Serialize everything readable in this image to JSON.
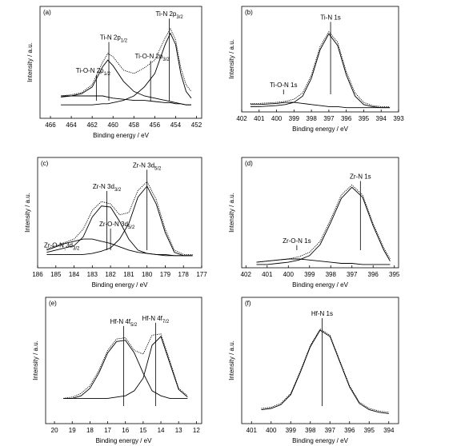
{
  "chart_data": [
    {
      "type": "line",
      "label": "(a)",
      "xlabel": "Binding energy / eV",
      "ylabel": "Intensity / a.u.",
      "xlim": [
        467,
        451.5
      ],
      "xticks": [
        466,
        464,
        462,
        460,
        458,
        456,
        454,
        452
      ],
      "ylim": [
        0,
        100
      ],
      "x": [
        465,
        464,
        463,
        462,
        461,
        460.5,
        460,
        459,
        458,
        457,
        456,
        455,
        454.5,
        454,
        453.5,
        453,
        452.5
      ],
      "series": [
        {
          "color": "#000000",
          "dash": true,
          "values": [
            20,
            21,
            23,
            30,
            50,
            58,
            55,
            43,
            40,
            45,
            52,
            72,
            80,
            70,
            45,
            30,
            24
          ]
        },
        {
          "color": "#000000",
          "values": [
            19,
            20,
            22,
            28,
            46,
            52,
            47,
            33,
            24,
            20,
            18,
            16,
            15,
            14,
            13,
            12,
            12
          ]
        },
        {
          "color": "#000000",
          "values": [
            12,
            12,
            12,
            12,
            13,
            13,
            14,
            16,
            20,
            28,
            40,
            66,
            76,
            66,
            40,
            24,
            18
          ]
        },
        {
          "color": "#000000",
          "values": [
            20,
            20,
            20,
            20,
            20,
            19,
            18,
            17,
            16,
            16,
            15,
            14,
            14,
            13,
            13,
            12,
            12
          ]
        }
      ],
      "annotations": [
        {
          "text": "Ti-O-N 2p",
          "sub": "1/2",
          "x": 461.6
        },
        {
          "text": "Ti-N 2p",
          "sub": "1/2",
          "x": 460.4
        },
        {
          "text": "Ti-O-N 2p",
          "sub": "3/2",
          "x": 456.4
        },
        {
          "text": "Ti-N 2p",
          "sub": "3/2",
          "x": 454.6
        }
      ]
    },
    {
      "type": "line",
      "label": "(b)",
      "xlabel": "Binding energy / eV",
      "ylabel": "Intensity / a.u.",
      "xlim": [
        402,
        393
      ],
      "xticks": [
        402,
        401,
        400,
        399,
        398,
        397,
        396,
        395,
        394,
        393
      ],
      "ylim": [
        0,
        100
      ],
      "x": [
        401.5,
        401,
        400,
        399.5,
        399,
        398.5,
        398,
        397.5,
        397,
        396.5,
        396,
        395.5,
        395,
        394.5,
        394,
        393.5
      ],
      "series": [
        {
          "color": "#000000",
          "dash": true,
          "values": [
            8,
            8,
            9,
            10,
            12,
            18,
            35,
            62,
            76,
            66,
            38,
            18,
            9,
            6,
            5,
            5
          ]
        },
        {
          "color": "#000000",
          "values": [
            5,
            5,
            6,
            7,
            9,
            15,
            32,
            59,
            74,
            63,
            35,
            15,
            7,
            5,
            4,
            4
          ]
        },
        {
          "color": "#000000",
          "values": [
            7,
            7,
            8,
            9,
            9,
            8,
            7,
            6,
            5,
            5,
            4,
            4,
            4,
            4,
            4,
            4
          ]
        }
      ],
      "annotations": [
        {
          "text": "Ti-O-N 1s",
          "x": 399.6
        },
        {
          "text": "Ti-N 1s",
          "x": 396.9
        }
      ]
    },
    {
      "type": "line",
      "label": "(c)",
      "xlabel": "Binding energy / eV",
      "ylabel": "Intensity / a.u.",
      "xlim": [
        186,
        177
      ],
      "xticks": [
        186,
        185,
        184,
        183,
        182,
        181,
        180,
        179,
        178,
        177
      ],
      "ylim": [
        0,
        100
      ],
      "x": [
        185.5,
        185,
        184.5,
        184,
        183.5,
        183,
        182.5,
        182,
        181.5,
        181,
        180.5,
        180,
        179.5,
        179,
        178.5,
        178,
        177.5
      ],
      "series": [
        {
          "color": "#000000",
          "dash": true,
          "values": [
            17,
            20,
            23,
            26,
            35,
            52,
            60,
            58,
            48,
            50,
            70,
            78,
            62,
            35,
            16,
            12,
            12
          ]
        },
        {
          "color": "#000000",
          "values": [
            14,
            16,
            18,
            20,
            28,
            46,
            56,
            55,
            42,
            26,
            16,
            13,
            12,
            11,
            11,
            11,
            11
          ]
        },
        {
          "color": "#000000",
          "values": [
            12,
            12,
            12,
            12,
            12,
            13,
            15,
            18,
            26,
            40,
            64,
            74,
            58,
            32,
            14,
            11,
            11
          ]
        },
        {
          "color": "#000000",
          "values": [
            16,
            19,
            22,
            24,
            26,
            26,
            24,
            22,
            19,
            16,
            14,
            13,
            12,
            12,
            11,
            11,
            11
          ]
        }
      ],
      "annotations": [
        {
          "text": "Zr-O-N 3d",
          "sub": "3/2",
          "x": 184.5
        },
        {
          "text": "Zr-N 3d",
          "sub": "3/2",
          "x": 182.2
        },
        {
          "text": "Zr-O-N 3d",
          "sub": "5/2",
          "x": 182
        },
        {
          "text": "Zr-N 3d",
          "sub": "5/2",
          "x": 180
        }
      ]
    },
    {
      "type": "line",
      "label": "(d)",
      "xlabel": "Binding energy / eV",
      "ylabel": "Intensity / a.u.",
      "xlim": [
        402.2,
        394.8
      ],
      "xticks": [
        402,
        401,
        400,
        399,
        398,
        397,
        396,
        395
      ],
      "ylim": [
        0,
        100
      ],
      "x": [
        401.5,
        401,
        400.5,
        400,
        399.5,
        399,
        398.5,
        398,
        397.5,
        397,
        396.5,
        396,
        395.5,
        395.2
      ],
      "series": [
        {
          "color": "#000000",
          "dash": true,
          "values": [
            5,
            6,
            7,
            8,
            10,
            14,
            24,
            44,
            66,
            75,
            66,
            40,
            18,
            8
          ]
        },
        {
          "color": "#000000",
          "values": [
            3,
            3,
            4,
            5,
            7,
            11,
            21,
            41,
            63,
            73,
            64,
            38,
            16,
            6
          ]
        },
        {
          "color": "#000000",
          "values": [
            5,
            6,
            7,
            8,
            8,
            7,
            6,
            5,
            4,
            4,
            3,
            3,
            3,
            3
          ]
        }
      ],
      "annotations": [
        {
          "text": "Zr-O-N 1s",
          "x": 399.6
        },
        {
          "text": "Zr-N 1s",
          "x": 396.6
        }
      ]
    },
    {
      "type": "line",
      "label": "(e)",
      "xlabel": "Binding energy / eV",
      "ylabel": "Intensity / a.u.",
      "xlim": [
        20.5,
        11.7
      ],
      "xticks": [
        20,
        19,
        18,
        17,
        16,
        15,
        14,
        13,
        12
      ],
      "ylim": [
        0,
        100
      ],
      "x": [
        19.5,
        19,
        18.5,
        18,
        17.5,
        17,
        16.5,
        16,
        15.5,
        15,
        14.5,
        14,
        13.5,
        13,
        12.5
      ],
      "series": [
        {
          "color": "#000000",
          "dash": true,
          "values": [
            20,
            21,
            24,
            30,
            42,
            58,
            67,
            68,
            58,
            55,
            70,
            71,
            50,
            28,
            22
          ]
        },
        {
          "color": "#000000",
          "values": [
            20,
            20,
            22,
            28,
            40,
            56,
            65,
            66,
            56,
            40,
            26,
            22,
            20,
            20,
            20
          ]
        },
        {
          "color": "#000000",
          "values": [
            20,
            20,
            20,
            20,
            20,
            20,
            21,
            22,
            26,
            36,
            62,
            69,
            48,
            27,
            21
          ]
        }
      ],
      "annotations": [
        {
          "text": "Hf-N 4f",
          "sub": "5/2",
          "x": 16.1
        },
        {
          "text": "Hf-N 4f",
          "sub": "7/2",
          "x": 14.3
        }
      ]
    },
    {
      "type": "line",
      "label": "(f)",
      "xlabel": "Binding energy / eV",
      "ylabel": "Intensity / a.u.",
      "xlim": [
        401.5,
        393.5
      ],
      "xticks": [
        401,
        400,
        399,
        398,
        397,
        396,
        395,
        394
      ],
      "ylim": [
        0,
        100
      ],
      "x": [
        400.5,
        400,
        399.5,
        399,
        398.5,
        398,
        397.5,
        397,
        396.5,
        396,
        395.5,
        395,
        394.5,
        394
      ],
      "series": [
        {
          "color": "#000000",
          "dash": true,
          "values": [
            12,
            13,
            16,
            24,
            42,
            62,
            75,
            70,
            50,
            30,
            17,
            12,
            10,
            9
          ]
        },
        {
          "color": "#000000",
          "values": [
            11,
            12,
            15,
            23,
            41,
            61,
            74,
            69,
            49,
            29,
            16,
            11,
            9,
            8
          ]
        }
      ],
      "annotations": [
        {
          "text": "Hf-N 1s",
          "x": 397.4
        }
      ]
    }
  ]
}
